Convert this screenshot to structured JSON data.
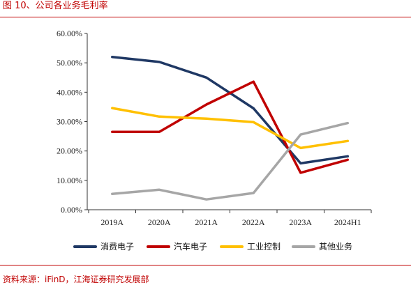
{
  "header": {
    "figure_title": "图 10、公司各业务毛利率"
  },
  "footer": {
    "source": "资料来源：iFinD，江海证券研究发展部"
  },
  "chart_data": {
    "type": "line",
    "title": "",
    "xlabel": "",
    "ylabel": "",
    "categories": [
      "2019A",
      "2020A",
      "2021A",
      "2022A",
      "2023A",
      "2024H1"
    ],
    "ylim": [
      0,
      60
    ],
    "yticks": [
      "0.00%",
      "10.00%",
      "20.00%",
      "30.00%",
      "40.00%",
      "50.00%",
      "60.00%"
    ],
    "grid": false,
    "legend_position": "bottom",
    "series": [
      {
        "name": "消费电子",
        "color": "#1f3864",
        "values": [
          52.0,
          50.3,
          45.0,
          34.5,
          15.8,
          18.2
        ]
      },
      {
        "name": "汽车电子",
        "color": "#c00000",
        "values": [
          26.5,
          26.5,
          35.8,
          43.6,
          12.6,
          17.0
        ]
      },
      {
        "name": "工业控制",
        "color": "#ffc000",
        "values": [
          34.6,
          31.7,
          31.0,
          29.8,
          21.0,
          23.4
        ]
      },
      {
        "name": "其他业务",
        "color": "#a6a6a6",
        "values": [
          5.4,
          6.8,
          3.5,
          5.7,
          25.6,
          29.5
        ]
      }
    ]
  }
}
